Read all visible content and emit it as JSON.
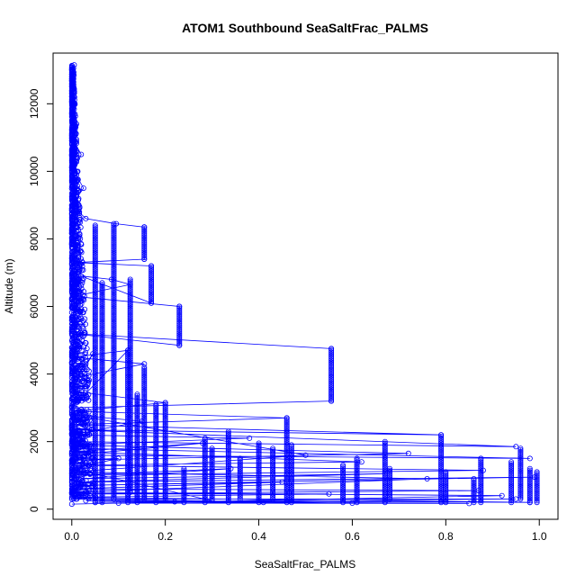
{
  "chart_data": {
    "type": "scatter",
    "title": "ATOM1 Southbound SeaSaltFrac_PALMS",
    "xlabel": "SeaSaltFrac_PALMS",
    "ylabel": "Altitude (m)",
    "xlim": [
      -0.04,
      1.04
    ],
    "ylim": [
      -300,
      13500
    ],
    "x_ticks": [
      0.0,
      0.2,
      0.4,
      0.6,
      0.8,
      1.0
    ],
    "x_tick_labels": [
      "0.0",
      "0.2",
      "0.4",
      "0.6",
      "0.8",
      "1.0"
    ],
    "y_ticks": [
      0,
      2000,
      4000,
      6000,
      8000,
      10000,
      12000
    ],
    "y_tick_labels": [
      "0",
      "2000",
      "4000",
      "6000",
      "8000",
      "10000",
      "12000"
    ],
    "grid": false,
    "legend": "none",
    "marker": "open-circle",
    "connected": true,
    "color": "#0000ff",
    "series": [
      {
        "points": [
          [
            0.005,
            13150
          ],
          [
            0.0,
            12600
          ],
          [
            0.003,
            12000
          ],
          [
            0.01,
            11400
          ],
          [
            0.0,
            11000
          ],
          [
            0.02,
            10500
          ],
          [
            0.005,
            10000
          ],
          [
            0.025,
            9500
          ],
          [
            0.0,
            9000
          ],
          [
            0.03,
            8600
          ],
          [
            0.095,
            8450
          ],
          [
            0.155,
            8350
          ],
          [
            0.155,
            7400
          ],
          [
            0.01,
            7300
          ],
          [
            0.17,
            7200
          ],
          [
            0.17,
            6100
          ],
          [
            0.02,
            6900
          ],
          [
            0.085,
            6800
          ],
          [
            0.125,
            6650
          ],
          [
            0.005,
            6300
          ],
          [
            0.23,
            6000
          ],
          [
            0.23,
            4850
          ],
          [
            0.0,
            5200
          ],
          [
            0.555,
            4750
          ],
          [
            0.555,
            3200
          ],
          [
            0.0,
            3000
          ],
          [
            0.12,
            4700
          ],
          [
            0.0,
            4500
          ],
          [
            0.155,
            4300
          ],
          [
            0.01,
            3900
          ],
          [
            0.045,
            4600
          ],
          [
            0.0,
            3500
          ],
          [
            0.2,
            3150
          ],
          [
            0.0,
            2900
          ],
          [
            0.46,
            2700
          ],
          [
            0.0,
            2500
          ],
          [
            0.79,
            2200
          ],
          [
            0.0,
            2350
          ],
          [
            0.95,
            1850
          ],
          [
            0.0,
            2000
          ],
          [
            0.005,
            1800
          ],
          [
            0.98,
            1500
          ],
          [
            0.0,
            1600
          ],
          [
            0.28,
            1950
          ],
          [
            0.0,
            1700
          ],
          [
            0.62,
            1400
          ],
          [
            0.0,
            1300
          ],
          [
            0.88,
            1150
          ],
          [
            0.0,
            1000
          ],
          [
            0.34,
            1200
          ],
          [
            0.02,
            900
          ],
          [
            0.67,
            1050
          ],
          [
            0.005,
            800
          ],
          [
            0.99,
            950
          ],
          [
            0.0,
            700
          ],
          [
            0.45,
            800
          ],
          [
            0.0,
            600
          ],
          [
            0.87,
            550
          ],
          [
            0.0,
            450
          ],
          [
            0.55,
            450
          ],
          [
            0.0,
            350
          ],
          [
            0.98,
            200
          ],
          [
            0.03,
            250
          ],
          [
            0.41,
            200
          ],
          [
            0.1,
            180
          ],
          [
            0.85,
            170
          ],
          [
            0.22,
            220
          ],
          [
            0.6,
            180
          ],
          [
            0.0,
            300
          ],
          [
            0.95,
            300
          ],
          [
            0.05,
            200
          ],
          [
            0.3,
            250
          ],
          [
            0.0,
            1200
          ],
          [
            0.1,
            1500
          ],
          [
            0.0,
            1450
          ],
          [
            0.72,
            1650
          ],
          [
            0.0,
            1900
          ],
          [
            0.38,
            2100
          ],
          [
            0.0,
            2200
          ],
          [
            0.15,
            2600
          ],
          [
            0.0,
            2800
          ],
          [
            0.5,
            1600
          ],
          [
            0.0,
            1100
          ],
          [
            0.76,
            900
          ],
          [
            0.0,
            500
          ],
          [
            0.92,
            400
          ],
          [
            0.0,
            150
          ]
        ]
      }
    ],
    "vertical_columns": [
      {
        "x": 0.05,
        "y_from": 200,
        "y_to": 8400
      },
      {
        "x": 0.065,
        "y_from": 200,
        "y_to": 6700
      },
      {
        "x": 0.09,
        "y_from": 300,
        "y_to": 8450
      },
      {
        "x": 0.12,
        "y_from": 200,
        "y_to": 4700
      },
      {
        "x": 0.125,
        "y_from": 500,
        "y_to": 6800
      },
      {
        "x": 0.155,
        "y_from": 7400,
        "y_to": 8350
      },
      {
        "x": 0.17,
        "y_from": 6100,
        "y_to": 7200
      },
      {
        "x": 0.14,
        "y_from": 200,
        "y_to": 3400
      },
      {
        "x": 0.155,
        "y_from": 300,
        "y_to": 4200
      },
      {
        "x": 0.18,
        "y_from": 200,
        "y_to": 3100
      },
      {
        "x": 0.2,
        "y_from": 300,
        "y_to": 3150
      },
      {
        "x": 0.23,
        "y_from": 4850,
        "y_to": 6000
      },
      {
        "x": 0.24,
        "y_from": 200,
        "y_to": 1200
      },
      {
        "x": 0.285,
        "y_from": 200,
        "y_to": 2100
      },
      {
        "x": 0.3,
        "y_from": 300,
        "y_to": 1800
      },
      {
        "x": 0.335,
        "y_from": 200,
        "y_to": 2300
      },
      {
        "x": 0.36,
        "y_from": 300,
        "y_to": 1500
      },
      {
        "x": 0.4,
        "y_from": 200,
        "y_to": 1950
      },
      {
        "x": 0.43,
        "y_from": 300,
        "y_to": 1800
      },
      {
        "x": 0.46,
        "y_from": 200,
        "y_to": 2700
      },
      {
        "x": 0.47,
        "y_from": 200,
        "y_to": 1900
      },
      {
        "x": 0.555,
        "y_from": 3200,
        "y_to": 4750
      },
      {
        "x": 0.58,
        "y_from": 200,
        "y_to": 1300
      },
      {
        "x": 0.61,
        "y_from": 200,
        "y_to": 1500
      },
      {
        "x": 0.67,
        "y_from": 200,
        "y_to": 2000
      },
      {
        "x": 0.68,
        "y_from": 300,
        "y_to": 1200
      },
      {
        "x": 0.79,
        "y_from": 200,
        "y_to": 2200
      },
      {
        "x": 0.8,
        "y_from": 200,
        "y_to": 1100
      },
      {
        "x": 0.86,
        "y_from": 200,
        "y_to": 900
      },
      {
        "x": 0.875,
        "y_from": 200,
        "y_to": 1500
      },
      {
        "x": 0.94,
        "y_from": 200,
        "y_to": 1400
      },
      {
        "x": 0.96,
        "y_from": 300,
        "y_to": 1800
      },
      {
        "x": 0.98,
        "y_from": 200,
        "y_to": 1200
      },
      {
        "x": 0.995,
        "y_from": 200,
        "y_to": 1100
      }
    ],
    "dense_band": {
      "x_range": [
        0.0,
        0.05
      ],
      "y_from": 300,
      "y_to": 13150
    }
  }
}
